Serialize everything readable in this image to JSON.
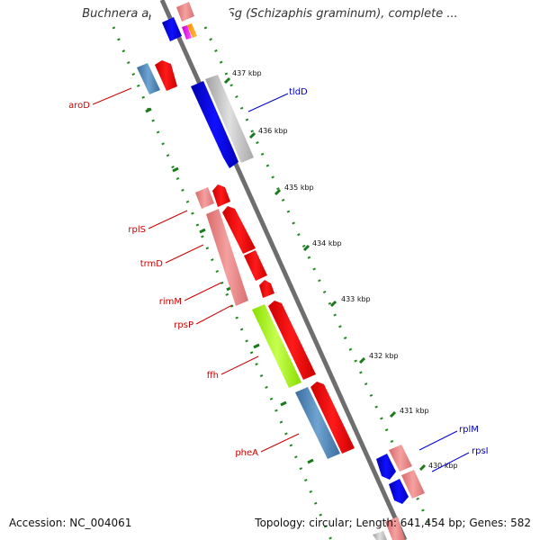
{
  "title": "Buchnera aphidicola str. Sg (Schizaphis graminum), complete ...",
  "accession": "Accession: NC_004061",
  "summary": "Topology: circular; Length: 641,454 bp; Genes: 582",
  "ticks": [
    "437 kbp",
    "436 kbp",
    "435 kbp",
    "434 kbp",
    "433 kbp",
    "432 kbp",
    "431 kbp",
    "430 kbp"
  ],
  "genes": [
    {
      "label": "aroD",
      "color": "#cc0000"
    },
    {
      "label": "tldD",
      "color": "#0000cc"
    },
    {
      "label": "rplS",
      "color": "#cc0000"
    },
    {
      "label": "trmD",
      "color": "#cc0000"
    },
    {
      "label": "rimM",
      "color": "#cc0000"
    },
    {
      "label": "rpsP",
      "color": "#cc0000"
    },
    {
      "label": "ffh",
      "color": "#cc0000"
    },
    {
      "label": "pheA",
      "color": "#cc0000"
    },
    {
      "label": "rplM",
      "color": "#0000cc"
    },
    {
      "label": "rpsI",
      "color": "#0000cc"
    }
  ]
}
